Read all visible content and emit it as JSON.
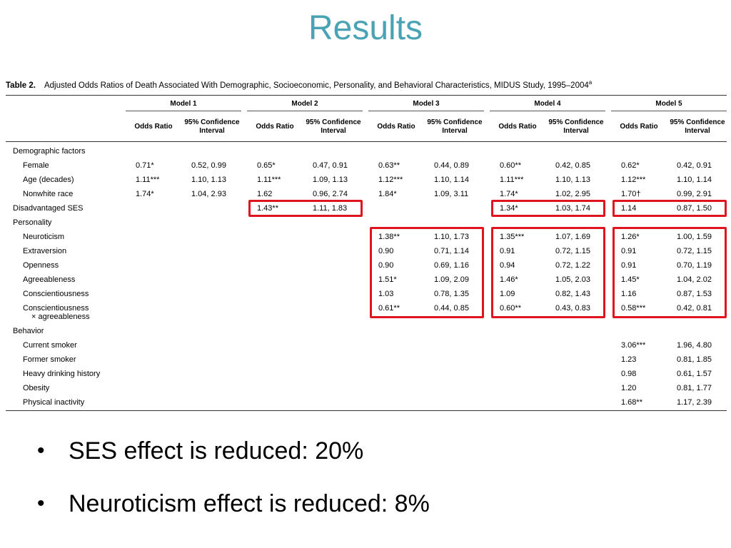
{
  "slide": {
    "title": "Results"
  },
  "table": {
    "label": "Table 2.",
    "caption": "Adjusted Odds Ratios of Death Associated With Demographic, Socioeconomic, Personality, and Behavioral Characteristics, MIDUS Study, 1995–2004",
    "caption_note": "a",
    "models": [
      "Model 1",
      "Model 2",
      "Model 3",
      "Model 4",
      "Model 5"
    ],
    "col_or": "Odds Ratio",
    "col_ci": "95% Confidence Interval",
    "rows": [
      {
        "label": "Demographic factors",
        "section": true,
        "cells": [
          "",
          "",
          "",
          "",
          "",
          "",
          "",
          "",
          "",
          ""
        ]
      },
      {
        "label": "Female",
        "cells": [
          "0.71*",
          "0.52, 0.99",
          "0.65*",
          "0.47, 0.91",
          "0.63**",
          "0.44, 0.89",
          "0.60**",
          "0.42, 0.85",
          "0.62*",
          "0.42, 0.91"
        ]
      },
      {
        "label": "Age (decades)",
        "cells": [
          "1.11***",
          "1.10, 1.13",
          "1.11***",
          "1.09, 1.13",
          "1.12***",
          "1.10, 1.14",
          "1.11***",
          "1.10, 1.13",
          "1.12***",
          "1.10, 1.14"
        ]
      },
      {
        "label": "Nonwhite race",
        "cells": [
          "1.74*",
          "1.04, 2.93",
          "1.62",
          "0.96, 2.74",
          "1.84*",
          "1.09, 3.11",
          "1.74*",
          "1.02, 2.95",
          "1.70†",
          "0.99, 2.91"
        ]
      },
      {
        "label": "Disadvantaged SES",
        "section": true,
        "cells": [
          "",
          "",
          "1.43**",
          "1.11, 1.83",
          "",
          "",
          "1.34*",
          "1.03, 1.74",
          "1.14",
          "0.87, 1.50"
        ]
      },
      {
        "label": "Personality",
        "section": true,
        "cells": [
          "",
          "",
          "",
          "",
          "",
          "",
          "",
          "",
          "",
          ""
        ]
      },
      {
        "label": "Neuroticism",
        "cells": [
          "",
          "",
          "",
          "",
          "1.38**",
          "1.10, 1.73",
          "1.35***",
          "1.07, 1.69",
          "1.26*",
          "1.00, 1.59"
        ]
      },
      {
        "label": "Extraversion",
        "cells": [
          "",
          "",
          "",
          "",
          "0.90",
          "0.71, 1.14",
          "0.91",
          "0.72, 1.15",
          "0.91",
          "0.72, 1.15"
        ]
      },
      {
        "label": "Openness",
        "cells": [
          "",
          "",
          "",
          "",
          "0.90",
          "0.69, 1.16",
          "0.94",
          "0.72, 1.22",
          "0.91",
          "0.70, 1.19"
        ]
      },
      {
        "label": "Agreeableness",
        "cells": [
          "",
          "",
          "",
          "",
          "1.51*",
          "1.09, 2.09",
          "1.46*",
          "1.05, 2.03",
          "1.45*",
          "1.04, 2.02"
        ]
      },
      {
        "label": "Conscientiousness",
        "cells": [
          "",
          "",
          "",
          "",
          "1.03",
          "0.78, 1.35",
          "1.09",
          "0.82, 1.43",
          "1.16",
          "0.87, 1.53"
        ]
      },
      {
        "label": "Conscientiousness",
        "label2": "× agreeableness",
        "cells": [
          "",
          "",
          "",
          "",
          "0.61**",
          "0.44, 0.85",
          "0.60**",
          "0.43, 0.83",
          "0.58***",
          "0.42, 0.81"
        ]
      },
      {
        "label": "Behavior",
        "section": true,
        "cells": [
          "",
          "",
          "",
          "",
          "",
          "",
          "",
          "",
          "",
          ""
        ]
      },
      {
        "label": "Current smoker",
        "cells": [
          "",
          "",
          "",
          "",
          "",
          "",
          "",
          "",
          "3.06***",
          "1.96, 4.80"
        ]
      },
      {
        "label": "Former smoker",
        "cells": [
          "",
          "",
          "",
          "",
          "",
          "",
          "",
          "",
          "1.23",
          "0.81, 1.85"
        ]
      },
      {
        "label": "Heavy drinking history",
        "cells": [
          "",
          "",
          "",
          "",
          "",
          "",
          "",
          "",
          "0.98",
          "0.61, 1.57"
        ]
      },
      {
        "label": "Obesity",
        "cells": [
          "",
          "",
          "",
          "",
          "",
          "",
          "",
          "",
          "1.20",
          "0.81, 1.77"
        ]
      },
      {
        "label": "Physical inactivity",
        "cells": [
          "",
          "",
          "",
          "",
          "",
          "",
          "",
          "",
          "1.68**",
          "1.17, 2.39"
        ]
      }
    ]
  },
  "highlight_color": "#e0141e",
  "bullets": [
    "SES effect is reduced: 20%",
    "Neuroticism effect is reduced: 8%"
  ]
}
